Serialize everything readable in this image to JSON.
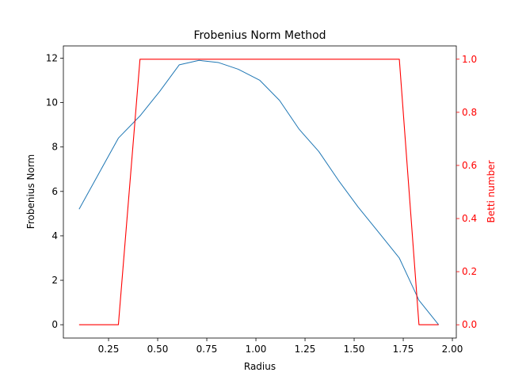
{
  "chart_data": {
    "type": "line",
    "title": "Frobenius Norm Method",
    "xlabel": "Radius",
    "ylabel_left": "Frobenius Norm",
    "ylabel_right": "Betti number",
    "xlim": [
      0.02,
      2.02
    ],
    "ylim_left": [
      -0.6,
      12.55
    ],
    "ylim_right": [
      -0.05,
      1.05
    ],
    "x_ticks": [
      0.25,
      0.5,
      0.75,
      1.0,
      1.25,
      1.5,
      1.75,
      2.0
    ],
    "x_tick_labels": [
      "0.25",
      "0.50",
      "0.75",
      "1.00",
      "1.25",
      "1.50",
      "1.75",
      "2.00"
    ],
    "y_left_ticks": [
      0,
      2,
      4,
      6,
      8,
      10,
      12
    ],
    "y_left_tick_labels": [
      "0",
      "2",
      "4",
      "6",
      "8",
      "10",
      "12"
    ],
    "y_right_ticks": [
      0.0,
      0.2,
      0.4,
      0.6,
      0.8,
      1.0
    ],
    "y_right_tick_labels": [
      "0.0",
      "0.2",
      "0.4",
      "0.6",
      "0.8",
      "1.0"
    ],
    "grid": false,
    "series": [
      {
        "axis": "left",
        "color": "#1f77b4",
        "x": [
          0.1,
          0.2,
          0.3,
          0.41,
          0.51,
          0.61,
          0.71,
          0.81,
          0.91,
          1.02,
          1.12,
          1.22,
          1.32,
          1.42,
          1.52,
          1.63,
          1.73,
          1.83,
          1.93
        ],
        "y": [
          5.2,
          6.8,
          8.4,
          9.4,
          10.5,
          11.7,
          11.9,
          11.8,
          11.5,
          11.0,
          10.1,
          8.8,
          7.8,
          6.5,
          5.3,
          4.1,
          3.0,
          1.1,
          0.0
        ]
      },
      {
        "axis": "right",
        "color": "#ff0000",
        "x": [
          0.1,
          0.2,
          0.3,
          0.41,
          0.51,
          0.61,
          0.71,
          0.81,
          0.91,
          1.02,
          1.12,
          1.22,
          1.32,
          1.42,
          1.52,
          1.63,
          1.73,
          1.83,
          1.93
        ],
        "y": [
          0,
          0,
          0,
          1,
          1,
          1,
          1,
          1,
          1,
          1,
          1,
          1,
          1,
          1,
          1,
          1,
          1,
          0,
          0
        ]
      }
    ]
  },
  "colors": {
    "right_axis": "#ff0000",
    "axes": "#000000"
  }
}
